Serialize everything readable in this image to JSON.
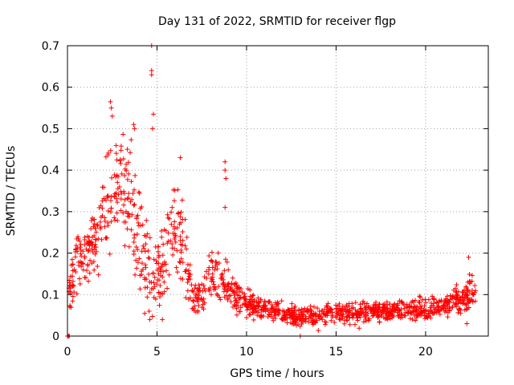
{
  "chart_data": {
    "type": "scatter",
    "title": "Day 131 of 2022, SRMTID for receiver flgp",
    "xlabel": "GPS time / hours",
    "ylabel": "SRMTID / TECUs",
    "xlim": [
      0,
      23.5
    ],
    "ylim": [
      0,
      0.7
    ],
    "xticks": [
      0,
      5,
      10,
      15,
      20
    ],
    "yticks": [
      0,
      0.1,
      0.2,
      0.3,
      0.4,
      0.5,
      0.6,
      0.7
    ],
    "grid": true,
    "marker": "+",
    "marker_color": "#ff0000",
    "series": [
      {
        "name": "SRMTID",
        "envelope": [
          {
            "x": 0.0,
            "median": 0.0,
            "spread": 0.005
          },
          {
            "x": 0.1,
            "median": 0.1,
            "spread": 0.05
          },
          {
            "x": 0.5,
            "median": 0.2,
            "spread": 0.06
          },
          {
            "x": 1.0,
            "median": 0.2,
            "spread": 0.06
          },
          {
            "x": 1.5,
            "median": 0.23,
            "spread": 0.07
          },
          {
            "x": 2.0,
            "median": 0.3,
            "spread": 0.09
          },
          {
            "x": 2.5,
            "median": 0.38,
            "spread": 0.12
          },
          {
            "x": 3.0,
            "median": 0.36,
            "spread": 0.11
          },
          {
            "x": 3.5,
            "median": 0.32,
            "spread": 0.1
          },
          {
            "x": 4.0,
            "median": 0.24,
            "spread": 0.09
          },
          {
            "x": 4.5,
            "median": 0.16,
            "spread": 0.08
          },
          {
            "x": 5.0,
            "median": 0.12,
            "spread": 0.07
          },
          {
            "x": 5.5,
            "median": 0.22,
            "spread": 0.09
          },
          {
            "x": 6.0,
            "median": 0.25,
            "spread": 0.09
          },
          {
            "x": 6.5,
            "median": 0.2,
            "spread": 0.08
          },
          {
            "x": 7.0,
            "median": 0.09,
            "spread": 0.03
          },
          {
            "x": 7.5,
            "median": 0.09,
            "spread": 0.03
          },
          {
            "x": 8.0,
            "median": 0.15,
            "spread": 0.05
          },
          {
            "x": 8.5,
            "median": 0.14,
            "spread": 0.05
          },
          {
            "x": 9.0,
            "median": 0.12,
            "spread": 0.04
          },
          {
            "x": 9.5,
            "median": 0.09,
            "spread": 0.03
          },
          {
            "x": 10.0,
            "median": 0.08,
            "spread": 0.025
          },
          {
            "x": 11.0,
            "median": 0.065,
            "spread": 0.02
          },
          {
            "x": 12.0,
            "median": 0.055,
            "spread": 0.02
          },
          {
            "x": 13.0,
            "median": 0.045,
            "spread": 0.02
          },
          {
            "x": 14.0,
            "median": 0.05,
            "spread": 0.02
          },
          {
            "x": 15.0,
            "median": 0.06,
            "spread": 0.02
          },
          {
            "x": 16.0,
            "median": 0.055,
            "spread": 0.02
          },
          {
            "x": 17.0,
            "median": 0.06,
            "spread": 0.02
          },
          {
            "x": 18.0,
            "median": 0.065,
            "spread": 0.02
          },
          {
            "x": 19.0,
            "median": 0.06,
            "spread": 0.02
          },
          {
            "x": 20.0,
            "median": 0.065,
            "spread": 0.02
          },
          {
            "x": 21.0,
            "median": 0.075,
            "spread": 0.025
          },
          {
            "x": 22.0,
            "median": 0.09,
            "spread": 0.03
          },
          {
            "x": 22.8,
            "median": 0.11,
            "spread": 0.03
          }
        ],
        "sample_count": 1400,
        "notable_points": [
          [
            0.0,
            0.0
          ],
          [
            0.05,
            0.0
          ],
          [
            0.1,
            0.0
          ],
          [
            4.7,
            0.7
          ],
          [
            4.7,
            0.64
          ],
          [
            4.7,
            0.63
          ],
          [
            4.8,
            0.535
          ],
          [
            4.75,
            0.5
          ],
          [
            2.4,
            0.565
          ],
          [
            2.45,
            0.55
          ],
          [
            2.5,
            0.53
          ],
          [
            3.7,
            0.51
          ],
          [
            3.75,
            0.5
          ],
          [
            6.3,
            0.43
          ],
          [
            8.8,
            0.42
          ],
          [
            8.8,
            0.4
          ],
          [
            8.85,
            0.38
          ],
          [
            8.8,
            0.31
          ],
          [
            4.6,
            0.04
          ],
          [
            5.3,
            0.04
          ],
          [
            13.0,
            0.0
          ],
          [
            22.4,
            0.19
          ],
          [
            22.3,
            0.03
          ]
        ]
      }
    ]
  }
}
